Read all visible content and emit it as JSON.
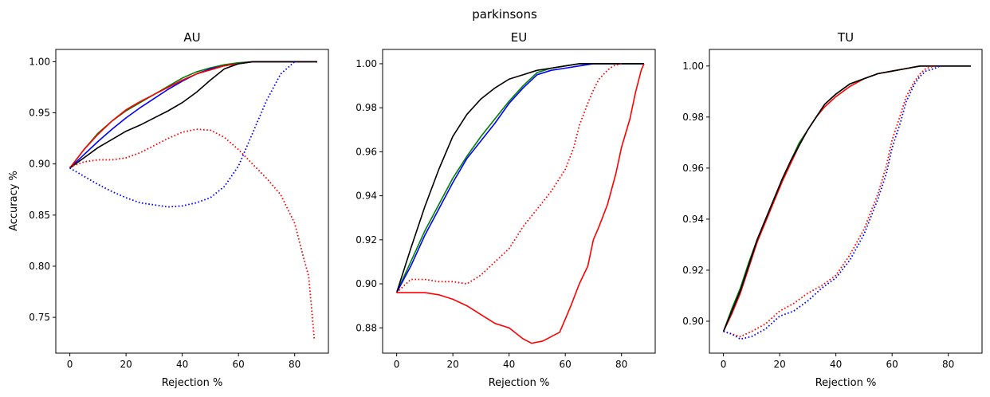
{
  "figure": {
    "suptitle": "parkinsons",
    "colors": {
      "red": "#ff0000",
      "green": "#008000",
      "blue": "#0000ff",
      "black": "#000000"
    }
  },
  "chart_data": [
    {
      "type": "line",
      "title": "AU",
      "xlabel": "Rejection %",
      "ylabel": "Accuracy %",
      "xlim": [
        -5,
        92
      ],
      "ylim": [
        0.715,
        1.012
      ],
      "xticks": [
        0,
        20,
        40,
        60,
        80
      ],
      "yticks": [
        0.75,
        0.8,
        0.85,
        0.9,
        0.95,
        1.0
      ],
      "tick_labels_x": [
        "0",
        "20",
        "40",
        "60",
        "80"
      ],
      "tick_labels_y": [
        "0.75",
        "0.80",
        "0.85",
        "0.90",
        "0.95",
        "1.00"
      ],
      "series": [
        {
          "color": "#008000",
          "style": "solid",
          "x": [
            0,
            5,
            10,
            15,
            20,
            25,
            30,
            35,
            40,
            45,
            50,
            55,
            60,
            65,
            70,
            88
          ],
          "y": [
            0.896,
            0.914,
            0.93,
            0.942,
            0.952,
            0.96,
            0.968,
            0.976,
            0.984,
            0.99,
            0.994,
            0.997,
            0.999,
            1.0,
            1.0,
            1.0
          ]
        },
        {
          "color": "#0000ff",
          "style": "solid",
          "x": [
            0,
            5,
            10,
            15,
            20,
            25,
            30,
            35,
            40,
            45,
            50,
            55,
            60,
            65,
            70,
            88
          ],
          "y": [
            0.896,
            0.909,
            0.922,
            0.934,
            0.945,
            0.955,
            0.964,
            0.973,
            0.981,
            0.988,
            0.993,
            0.996,
            0.998,
            1.0,
            1.0,
            1.0
          ]
        },
        {
          "color": "#ff0000",
          "style": "solid",
          "x": [
            0,
            5,
            10,
            15,
            20,
            25,
            30,
            35,
            40,
            45,
            50,
            55,
            60,
            65,
            70,
            88
          ],
          "y": [
            0.896,
            0.914,
            0.929,
            0.942,
            0.953,
            0.961,
            0.968,
            0.975,
            0.982,
            0.988,
            0.992,
            0.996,
            0.998,
            1.0,
            1.0,
            1.0
          ]
        },
        {
          "color": "#000000",
          "style": "solid",
          "x": [
            0,
            5,
            10,
            15,
            20,
            25,
            30,
            35,
            40,
            45,
            50,
            55,
            60,
            65,
            70,
            88
          ],
          "y": [
            0.896,
            0.906,
            0.916,
            0.924,
            0.932,
            0.938,
            0.945,
            0.952,
            0.96,
            0.97,
            0.982,
            0.993,
            0.998,
            1.0,
            1.0,
            1.0
          ]
        },
        {
          "color": "#ff0000",
          "style": "dotted",
          "x": [
            0,
            5,
            10,
            15,
            20,
            25,
            30,
            35,
            40,
            45,
            50,
            55,
            60,
            65,
            70,
            75,
            80,
            83,
            85,
            87
          ],
          "y": [
            0.897,
            0.902,
            0.904,
            0.904,
            0.906,
            0.911,
            0.918,
            0.925,
            0.931,
            0.934,
            0.933,
            0.926,
            0.914,
            0.9,
            0.886,
            0.87,
            0.842,
            0.81,
            0.79,
            0.728
          ]
        },
        {
          "color": "#0000ff",
          "style": "dotted",
          "x": [
            0,
            5,
            10,
            15,
            20,
            25,
            30,
            35,
            40,
            45,
            50,
            55,
            60,
            65,
            70,
            75,
            80
          ],
          "y": [
            0.896,
            0.888,
            0.88,
            0.873,
            0.867,
            0.862,
            0.86,
            0.858,
            0.859,
            0.862,
            0.867,
            0.878,
            0.898,
            0.93,
            0.962,
            0.988,
            1.0
          ]
        }
      ]
    },
    {
      "type": "line",
      "title": "EU",
      "xlabel": "Rejection %",
      "ylabel": "",
      "xlim": [
        -5,
        92
      ],
      "ylim": [
        0.8685,
        1.0065
      ],
      "xticks": [
        0,
        20,
        40,
        60,
        80
      ],
      "yticks": [
        0.88,
        0.9,
        0.92,
        0.94,
        0.96,
        0.98,
        1.0
      ],
      "tick_labels_x": [
        "0",
        "20",
        "40",
        "60",
        "80"
      ],
      "tick_labels_y": [
        "0.88",
        "0.90",
        "0.92",
        "0.94",
        "0.96",
        "0.98",
        "1.00"
      ],
      "series": [
        {
          "color": "#008000",
          "style": "solid",
          "x": [
            0,
            5,
            10,
            15,
            20,
            25,
            30,
            35,
            40,
            45,
            50,
            55,
            60,
            65,
            70,
            88
          ],
          "y": [
            0.896,
            0.91,
            0.924,
            0.936,
            0.948,
            0.958,
            0.967,
            0.975,
            0.983,
            0.99,
            0.996,
            0.998,
            0.999,
            1.0,
            1.0,
            1.0
          ]
        },
        {
          "color": "#0000ff",
          "style": "solid",
          "x": [
            0,
            5,
            10,
            15,
            20,
            25,
            30,
            35,
            40,
            45,
            50,
            55,
            60,
            65,
            70,
            88
          ],
          "y": [
            0.896,
            0.908,
            0.922,
            0.934,
            0.946,
            0.957,
            0.965,
            0.973,
            0.982,
            0.989,
            0.995,
            0.997,
            0.998,
            0.999,
            1.0,
            1.0
          ]
        },
        {
          "color": "#000000",
          "style": "solid",
          "x": [
            0,
            5,
            10,
            15,
            20,
            25,
            30,
            35,
            40,
            45,
            50,
            55,
            60,
            65,
            70,
            88
          ],
          "y": [
            0.896,
            0.916,
            0.935,
            0.952,
            0.967,
            0.977,
            0.984,
            0.989,
            0.993,
            0.995,
            0.997,
            0.998,
            0.999,
            1.0,
            1.0,
            1.0
          ]
        },
        {
          "color": "#ff0000",
          "style": "solid",
          "x": [
            0,
            5,
            10,
            15,
            20,
            25,
            30,
            35,
            40,
            45,
            48,
            52,
            55,
            58,
            60,
            62,
            65,
            68,
            70,
            72,
            75,
            78,
            80,
            83,
            85,
            87,
            88
          ],
          "y": [
            0.896,
            0.896,
            0.896,
            0.895,
            0.893,
            0.89,
            0.886,
            0.882,
            0.88,
            0.875,
            0.873,
            0.874,
            0.876,
            0.878,
            0.884,
            0.89,
            0.9,
            0.908,
            0.92,
            0.926,
            0.936,
            0.95,
            0.962,
            0.975,
            0.987,
            0.997,
            1.0
          ]
        },
        {
          "color": "#ff0000",
          "style": "dotted",
          "x": [
            0,
            5,
            10,
            15,
            20,
            25,
            30,
            35,
            40,
            45,
            50,
            55,
            60,
            63,
            65,
            68,
            70,
            72,
            75,
            77,
            80
          ],
          "y": [
            0.896,
            0.902,
            0.902,
            0.901,
            0.901,
            0.9,
            0.904,
            0.91,
            0.916,
            0.926,
            0.934,
            0.942,
            0.952,
            0.962,
            0.972,
            0.982,
            0.988,
            0.993,
            0.997,
            0.999,
            1.0
          ]
        }
      ]
    },
    {
      "type": "line",
      "title": "TU",
      "xlabel": "Rejection %",
      "ylabel": "",
      "xlim": [
        -5,
        92
      ],
      "ylim": [
        0.8875,
        1.0065
      ],
      "xticks": [
        0,
        20,
        40,
        60,
        80
      ],
      "yticks": [
        0.9,
        0.92,
        0.94,
        0.96,
        0.98,
        1.0
      ],
      "tick_labels_x": [
        "0",
        "20",
        "40",
        "60",
        "80"
      ],
      "tick_labels_y": [
        "0.90",
        "0.92",
        "0.94",
        "0.96",
        "0.98",
        "1.00"
      ],
      "series": [
        {
          "color": "#008000",
          "style": "solid",
          "x": [
            0,
            3,
            6,
            9,
            12,
            15,
            18,
            21,
            24,
            27,
            30,
            33,
            36,
            40,
            45,
            50,
            55,
            60,
            65,
            70,
            88
          ],
          "y": [
            0.896,
            0.905,
            0.913,
            0.923,
            0.932,
            0.94,
            0.948,
            0.956,
            0.963,
            0.97,
            0.975,
            0.98,
            0.985,
            0.989,
            0.993,
            0.995,
            0.997,
            0.998,
            0.999,
            1.0,
            1.0
          ]
        },
        {
          "color": "#ff0000",
          "style": "solid",
          "x": [
            0,
            3,
            6,
            9,
            12,
            15,
            18,
            21,
            24,
            27,
            30,
            33,
            36,
            40,
            45,
            50,
            55,
            60,
            65,
            70,
            88
          ],
          "y": [
            0.896,
            0.903,
            0.911,
            0.921,
            0.931,
            0.939,
            0.947,
            0.955,
            0.962,
            0.969,
            0.975,
            0.98,
            0.984,
            0.988,
            0.992,
            0.995,
            0.997,
            0.998,
            0.999,
            1.0,
            1.0
          ]
        },
        {
          "color": "#000000",
          "style": "solid",
          "x": [
            0,
            3,
            6,
            9,
            12,
            15,
            18,
            21,
            24,
            27,
            30,
            33,
            36,
            40,
            45,
            50,
            55,
            60,
            65,
            70,
            88
          ],
          "y": [
            0.896,
            0.904,
            0.912,
            0.922,
            0.932,
            0.94,
            0.948,
            0.956,
            0.963,
            0.969,
            0.975,
            0.98,
            0.985,
            0.989,
            0.993,
            0.995,
            0.997,
            0.998,
            0.999,
            1.0,
            1.0
          ]
        },
        {
          "color": "#ff0000",
          "style": "dotted",
          "x": [
            0,
            3,
            6,
            10,
            15,
            20,
            25,
            30,
            35,
            40,
            45,
            50,
            55,
            58,
            60,
            63,
            65,
            68,
            70,
            72,
            75
          ],
          "y": [
            0.896,
            0.895,
            0.894,
            0.896,
            0.899,
            0.904,
            0.907,
            0.911,
            0.914,
            0.918,
            0.926,
            0.936,
            0.95,
            0.961,
            0.971,
            0.981,
            0.988,
            0.994,
            0.997,
            0.999,
            1.0
          ]
        },
        {
          "color": "#0000ff",
          "style": "dotted",
          "x": [
            0,
            3,
            6,
            10,
            15,
            20,
            25,
            30,
            35,
            40,
            45,
            50,
            55,
            58,
            60,
            63,
            65,
            68,
            70,
            72,
            75,
            77
          ],
          "y": [
            0.896,
            0.895,
            0.893,
            0.894,
            0.897,
            0.902,
            0.904,
            0.908,
            0.913,
            0.917,
            0.924,
            0.934,
            0.948,
            0.958,
            0.968,
            0.978,
            0.986,
            0.993,
            0.996,
            0.998,
            0.999,
            1.0
          ]
        }
      ]
    }
  ]
}
